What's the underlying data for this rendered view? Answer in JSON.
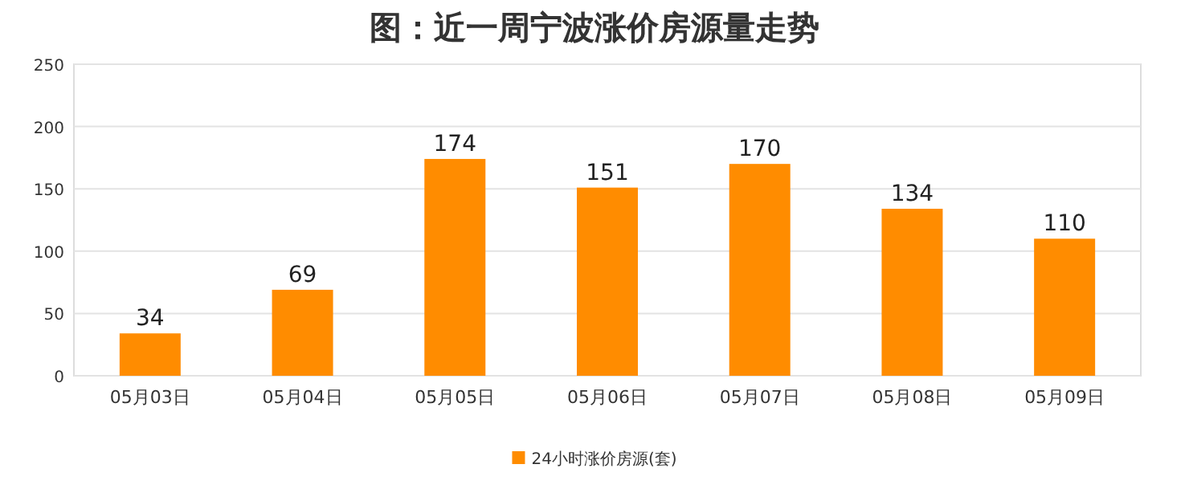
{
  "chart_data": {
    "type": "bar",
    "title": "图：近一周宁波涨价房源量走势",
    "categories": [
      "05月03日",
      "05月04日",
      "05月05日",
      "05月06日",
      "05月07日",
      "05月08日",
      "05月09日"
    ],
    "series": [
      {
        "name": "24小时涨价房源(套)",
        "color": "#ff8c00",
        "values": [
          34,
          69,
          174,
          151,
          170,
          134,
          110
        ]
      }
    ],
    "ylim": [
      0,
      250
    ],
    "yticks": [
      0,
      50,
      100,
      150,
      200,
      250
    ],
    "grid": "y",
    "legend": "bottom",
    "data_labels": true
  }
}
